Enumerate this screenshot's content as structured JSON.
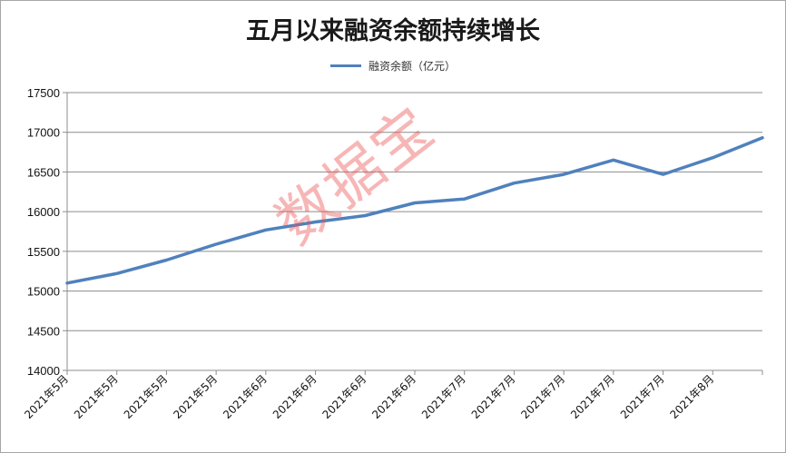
{
  "chart_data": {
    "type": "line",
    "title": "五月以来融资余额持续增长",
    "legend_position": "top-center",
    "grid": true,
    "x": [
      "2021年5月",
      "2021年5月",
      "2021年5月",
      "2021年5月",
      "2021年6月",
      "2021年6月",
      "2021年6月",
      "2021年6月",
      "2021年7月",
      "2021年7月",
      "2021年7月",
      "2021年7月",
      "2021年7月",
      "2021年8月",
      ""
    ],
    "series": [
      {
        "name": "融资余额（亿元）",
        "color": "#4f81bd",
        "values": [
          15100,
          15220,
          15390,
          15590,
          15770,
          15870,
          15950,
          16110,
          16160,
          16360,
          16470,
          16650,
          16470,
          16680,
          16930
        ]
      }
    ],
    "ylim": [
      14000,
      17500
    ],
    "yticks": [
      14000,
      14500,
      15000,
      15500,
      16000,
      16500,
      17000,
      17500
    ],
    "xlabel": "",
    "ylabel": ""
  },
  "watermark": "数据宝"
}
